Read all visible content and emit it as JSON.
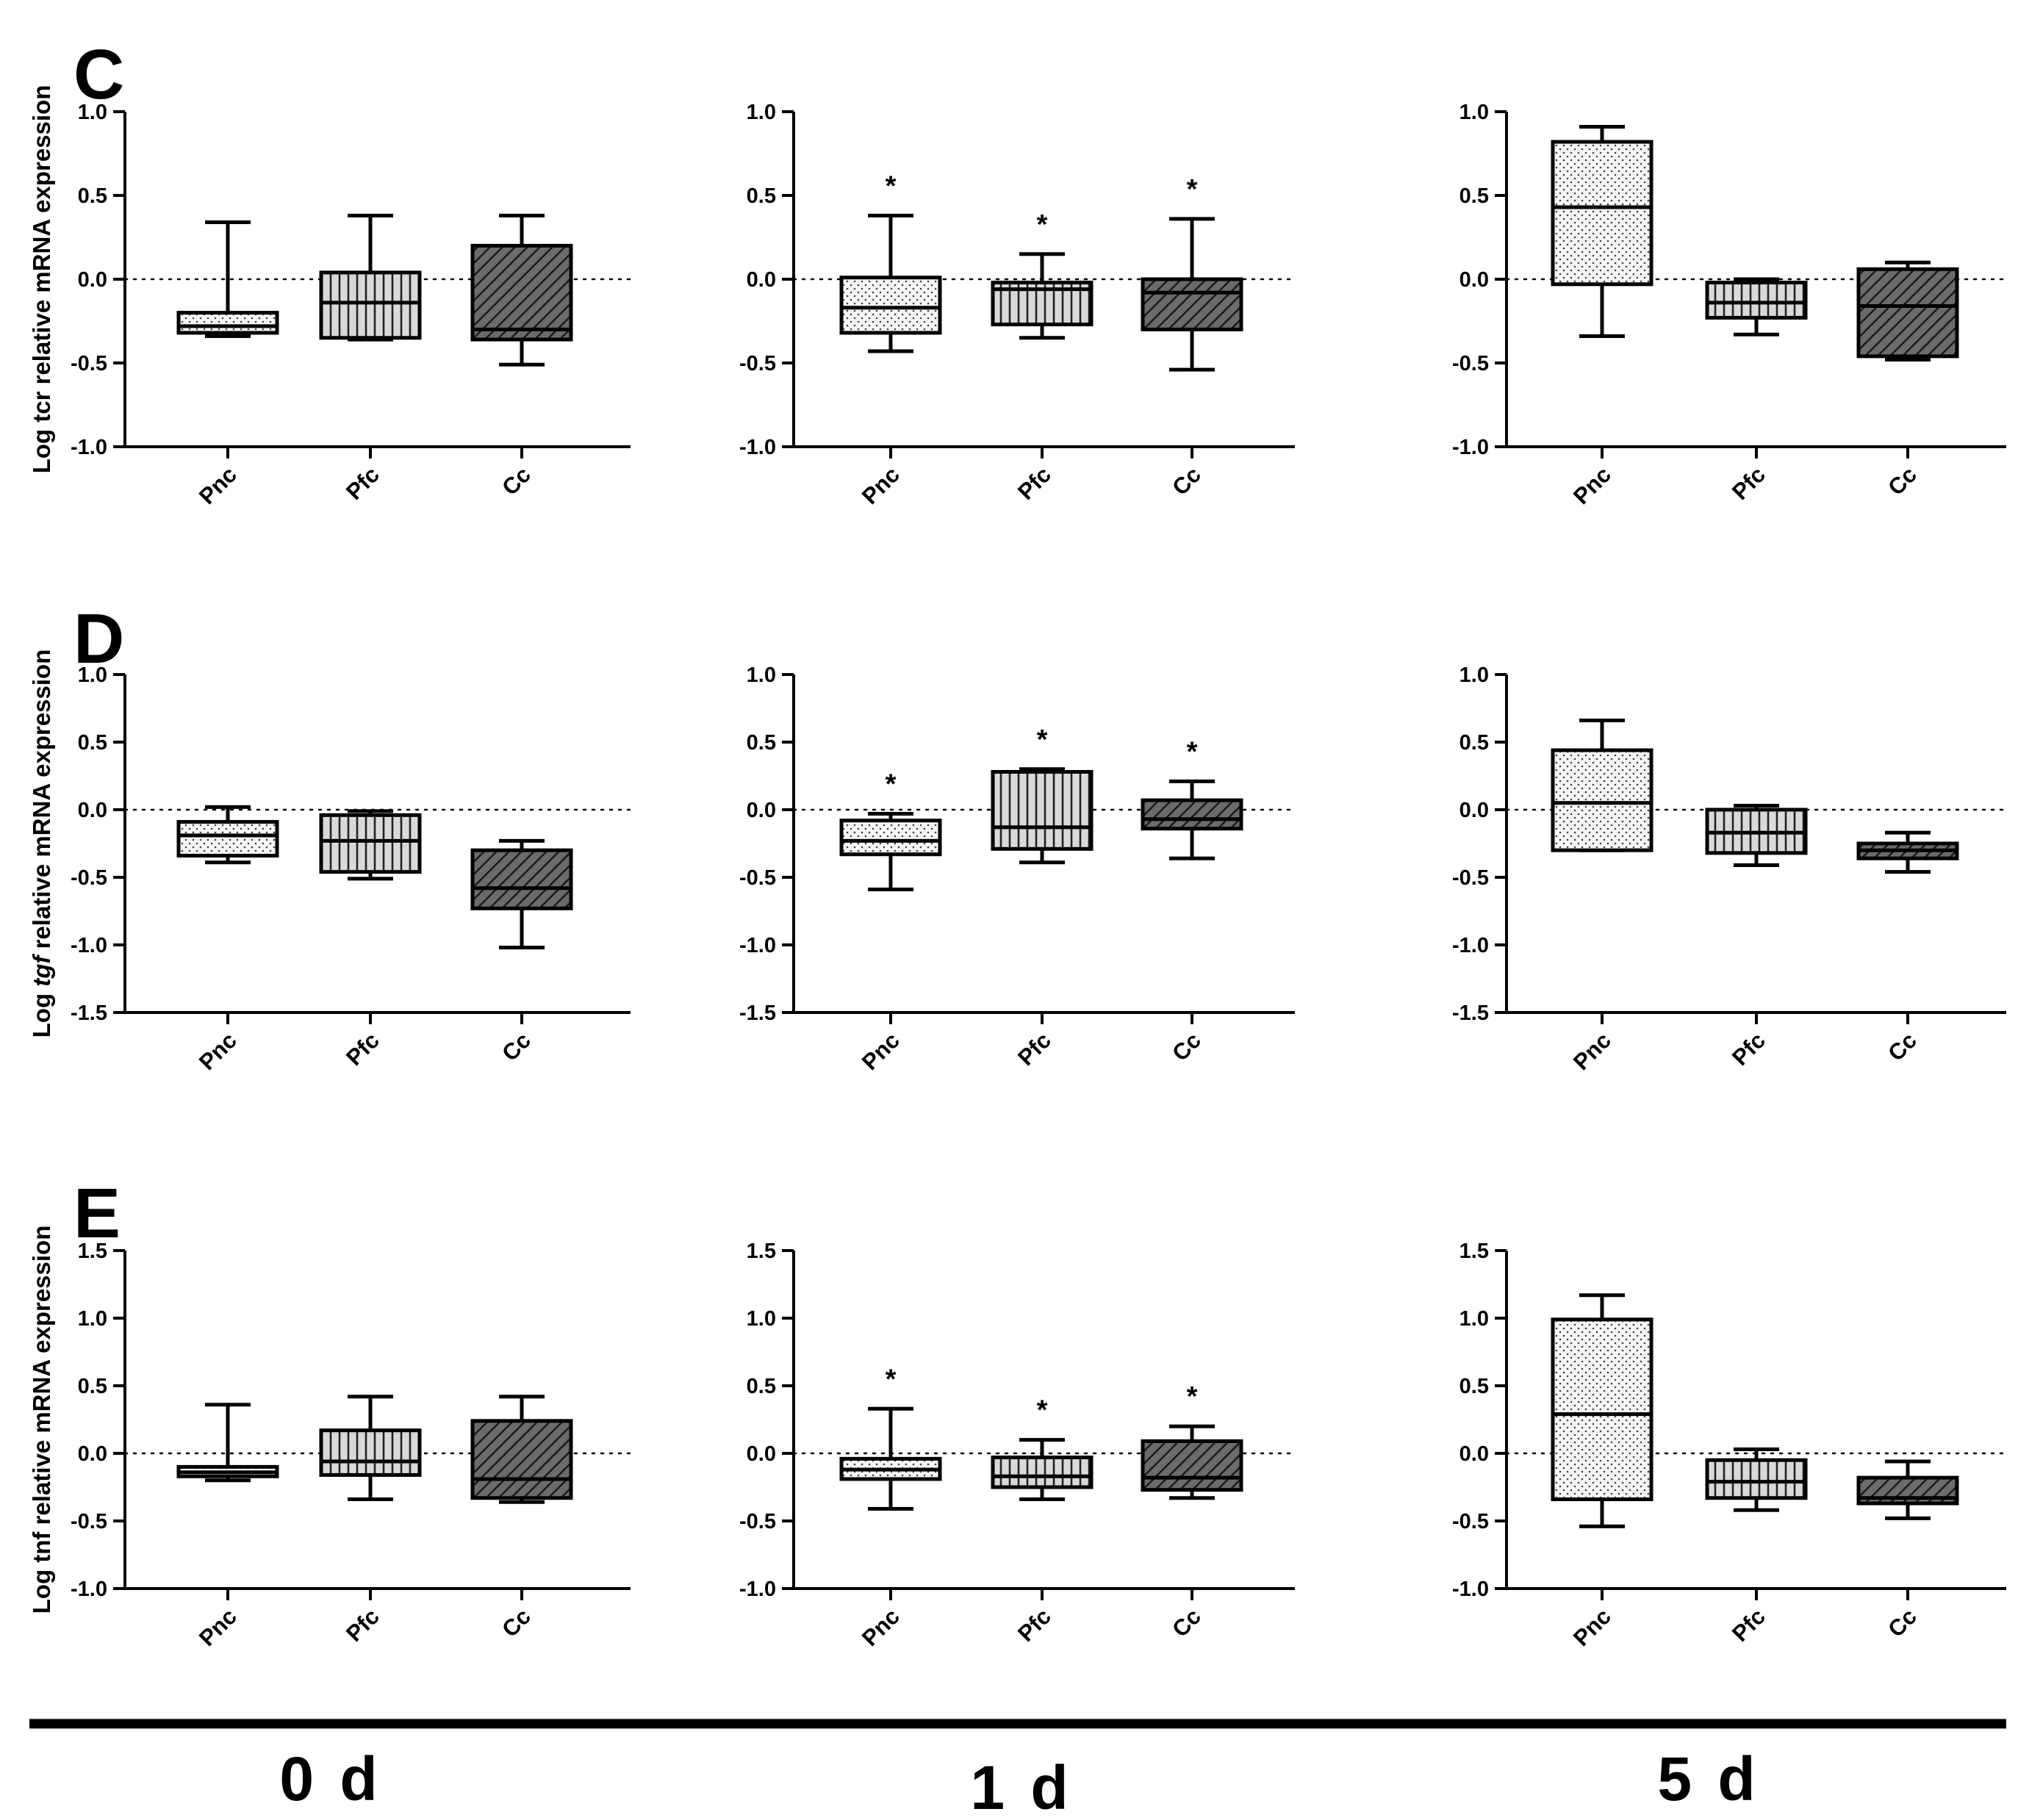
{
  "colors": {
    "ink": "#000000",
    "pnc_fill": "#f6f6f6",
    "pfc_fill": "#d9d9d9",
    "cc_fill": "#6b6b6b"
  },
  "timepoints": [
    "0 d",
    "1 d",
    "5 d"
  ],
  "chart_data": [
    {
      "panel": "C",
      "type": "box",
      "ylabel": "Log tcr relative mRNA expression",
      "ylim": [
        -1.0,
        1.0
      ],
      "ytick_labels": [
        "-1.0",
        "-0.5",
        "0.0",
        "0.5",
        "1.0"
      ],
      "columns": [
        {
          "timepoint": "0 d",
          "groups": [
            {
              "name": "Pnc",
              "pattern": "dots",
              "min": -0.34,
              "q1": -0.32,
              "median": -0.28,
              "q3": -0.2,
              "max": 0.34,
              "sig": ""
            },
            {
              "name": "Pfc",
              "pattern": "vlines",
              "min": -0.36,
              "q1": -0.35,
              "median": -0.14,
              "q3": 0.04,
              "max": 0.38,
              "sig": ""
            },
            {
              "name": "Cc",
              "pattern": "diag",
              "min": -0.51,
              "q1": -0.36,
              "median": -0.3,
              "q3": 0.2,
              "max": 0.38,
              "sig": ""
            }
          ]
        },
        {
          "timepoint": "1 d",
          "groups": [
            {
              "name": "Pnc",
              "pattern": "dots",
              "min": -0.43,
              "q1": -0.32,
              "median": -0.17,
              "q3": 0.01,
              "max": 0.38,
              "sig": "*"
            },
            {
              "name": "Pfc",
              "pattern": "vlines",
              "min": -0.35,
              "q1": -0.27,
              "median": -0.06,
              "q3": -0.02,
              "max": 0.15,
              "sig": "*"
            },
            {
              "name": "Cc",
              "pattern": "diag",
              "min": -0.54,
              "q1": -0.3,
              "median": -0.08,
              "q3": 0.0,
              "max": 0.36,
              "sig": "*"
            }
          ]
        },
        {
          "timepoint": "5 d",
          "groups": [
            {
              "name": "Pnc",
              "pattern": "dots",
              "min": -0.34,
              "q1": -0.03,
              "median": 0.43,
              "q3": 0.82,
              "max": 0.91,
              "sig": ""
            },
            {
              "name": "Pfc",
              "pattern": "vlines",
              "min": -0.33,
              "q1": -0.23,
              "median": -0.14,
              "q3": -0.02,
              "max": 0.0,
              "sig": ""
            },
            {
              "name": "Cc",
              "pattern": "diag",
              "min": -0.48,
              "q1": -0.46,
              "median": -0.16,
              "q3": 0.06,
              "max": 0.1,
              "sig": ""
            }
          ]
        }
      ]
    },
    {
      "panel": "D",
      "type": "box",
      "ylabel_pre": "Log ",
      "ylabel_gene": "tgf",
      "ylabel_post": " relative mRNA expression",
      "ylim": [
        -1.5,
        1.0
      ],
      "ytick_labels": [
        "-1.5",
        "-1.0",
        "-0.5",
        "0.0",
        "0.5",
        "1.0"
      ],
      "columns": [
        {
          "timepoint": "0 d",
          "groups": [
            {
              "name": "Pnc",
              "pattern": "dots",
              "min": -0.39,
              "q1": -0.34,
              "median": -0.19,
              "q3": -0.09,
              "max": 0.02,
              "sig": ""
            },
            {
              "name": "Pfc",
              "pattern": "vlines",
              "min": -0.51,
              "q1": -0.46,
              "median": -0.23,
              "q3": -0.04,
              "max": -0.01,
              "sig": ""
            },
            {
              "name": "Cc",
              "pattern": "diag",
              "min": -1.02,
              "q1": -0.73,
              "median": -0.58,
              "q3": -0.3,
              "max": -0.23,
              "sig": ""
            }
          ]
        },
        {
          "timepoint": "1 d",
          "groups": [
            {
              "name": "Pnc",
              "pattern": "dots",
              "min": -0.59,
              "q1": -0.33,
              "median": -0.23,
              "q3": -0.08,
              "max": -0.03,
              "sig": "*"
            },
            {
              "name": "Pfc",
              "pattern": "vlines",
              "min": -0.39,
              "q1": -0.29,
              "median": -0.13,
              "q3": 0.28,
              "max": 0.3,
              "sig": "*"
            },
            {
              "name": "Cc",
              "pattern": "diag",
              "min": -0.36,
              "q1": -0.14,
              "median": -0.07,
              "q3": 0.07,
              "max": 0.21,
              "sig": "*"
            }
          ]
        },
        {
          "timepoint": "5 d",
          "groups": [
            {
              "name": "Pnc",
              "pattern": "dots",
              "min": -0.3,
              "q1": -0.3,
              "median": 0.05,
              "q3": 0.44,
              "max": 0.66,
              "sig": ""
            },
            {
              "name": "Pfc",
              "pattern": "vlines",
              "min": -0.41,
              "q1": -0.32,
              "median": -0.17,
              "q3": 0.0,
              "max": 0.03,
              "sig": ""
            },
            {
              "name": "Cc",
              "pattern": "diag",
              "min": -0.46,
              "q1": -0.36,
              "median": -0.3,
              "q3": -0.25,
              "max": -0.17,
              "sig": ""
            }
          ]
        }
      ]
    },
    {
      "panel": "E",
      "type": "box",
      "ylabel": "Log tnf relative mRNA expression",
      "ylim": [
        -1.0,
        1.5
      ],
      "ytick_labels": [
        "-1.0",
        "-0.5",
        "0.0",
        "0.5",
        "1.0",
        "1.5"
      ],
      "columns": [
        {
          "timepoint": "0 d",
          "groups": [
            {
              "name": "Pnc",
              "pattern": "dots",
              "min": -0.2,
              "q1": -0.17,
              "median": -0.14,
              "q3": -0.1,
              "max": 0.36,
              "sig": ""
            },
            {
              "name": "Pfc",
              "pattern": "vlines",
              "min": -0.34,
              "q1": -0.16,
              "median": -0.06,
              "q3": 0.17,
              "max": 0.42,
              "sig": ""
            },
            {
              "name": "Cc",
              "pattern": "diag",
              "min": -0.36,
              "q1": -0.33,
              "median": -0.19,
              "q3": 0.24,
              "max": 0.42,
              "sig": ""
            }
          ]
        },
        {
          "timepoint": "1 d",
          "groups": [
            {
              "name": "Pnc",
              "pattern": "dots",
              "min": -0.41,
              "q1": -0.19,
              "median": -0.12,
              "q3": -0.04,
              "max": 0.33,
              "sig": "*"
            },
            {
              "name": "Pfc",
              "pattern": "vlines",
              "min": -0.34,
              "q1": -0.25,
              "median": -0.17,
              "q3": -0.03,
              "max": 0.1,
              "sig": "*"
            },
            {
              "name": "Cc",
              "pattern": "diag",
              "min": -0.33,
              "q1": -0.27,
              "median": -0.18,
              "q3": 0.09,
              "max": 0.2,
              "sig": "*"
            }
          ]
        },
        {
          "timepoint": "5 d",
          "groups": [
            {
              "name": "Pnc",
              "pattern": "dots",
              "min": -0.54,
              "q1": -0.34,
              "median": 0.29,
              "q3": 0.99,
              "max": 1.17,
              "sig": ""
            },
            {
              "name": "Pfc",
              "pattern": "vlines",
              "min": -0.42,
              "q1": -0.33,
              "median": -0.21,
              "q3": -0.05,
              "max": 0.03,
              "sig": ""
            },
            {
              "name": "Cc",
              "pattern": "diag",
              "min": -0.48,
              "q1": -0.37,
              "median": -0.33,
              "q3": -0.18,
              "max": -0.06,
              "sig": ""
            }
          ]
        }
      ]
    }
  ]
}
